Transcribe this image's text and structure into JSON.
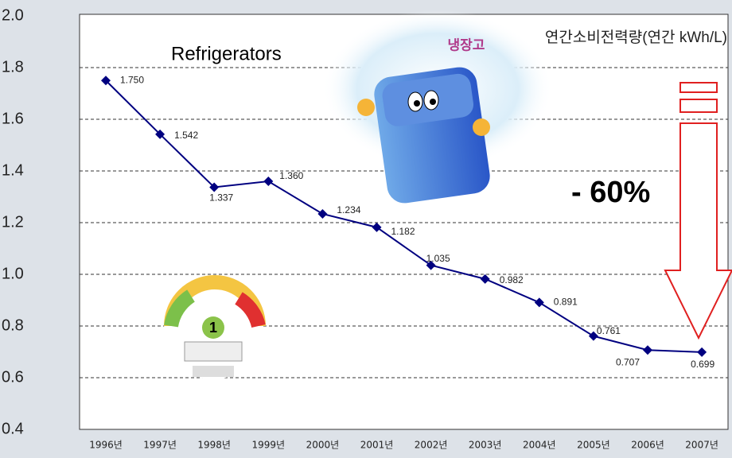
{
  "chart_data": {
    "type": "line",
    "title": "Refrigerators",
    "annotations": {
      "unit": "연간소비전력량(연간 kWh/L)",
      "change": "- 60%",
      "image_caption": "냉장고",
      "grade": "1"
    },
    "categories": [
      "1996년",
      "1997년",
      "1998년",
      "1999년",
      "2000년",
      "2001년",
      "2002년",
      "2003년",
      "2004년",
      "2005년",
      "2006년",
      "2007년"
    ],
    "values": [
      1.75,
      1.542,
      1.337,
      1.36,
      1.234,
      1.182,
      1.035,
      0.982,
      0.891,
      0.761,
      0.707,
      0.699
    ],
    "value_labels": [
      "1.750",
      "1.542",
      "1.337",
      "1.360",
      "1.234",
      "1.182",
      "1.035",
      "0.982",
      "0.891",
      "0.761",
      "0.707",
      "0.699"
    ],
    "color": "#000080",
    "ylim": [
      0.4,
      2.0
    ],
    "yticks": [
      0.4,
      0.6,
      0.8,
      {
        "value": 1.0,
        "label": "1.0"
      },
      1.2,
      1.4,
      1.6,
      1.8,
      {
        "value": 2.0,
        "label": "2.0"
      }
    ],
    "grid": true
  }
}
